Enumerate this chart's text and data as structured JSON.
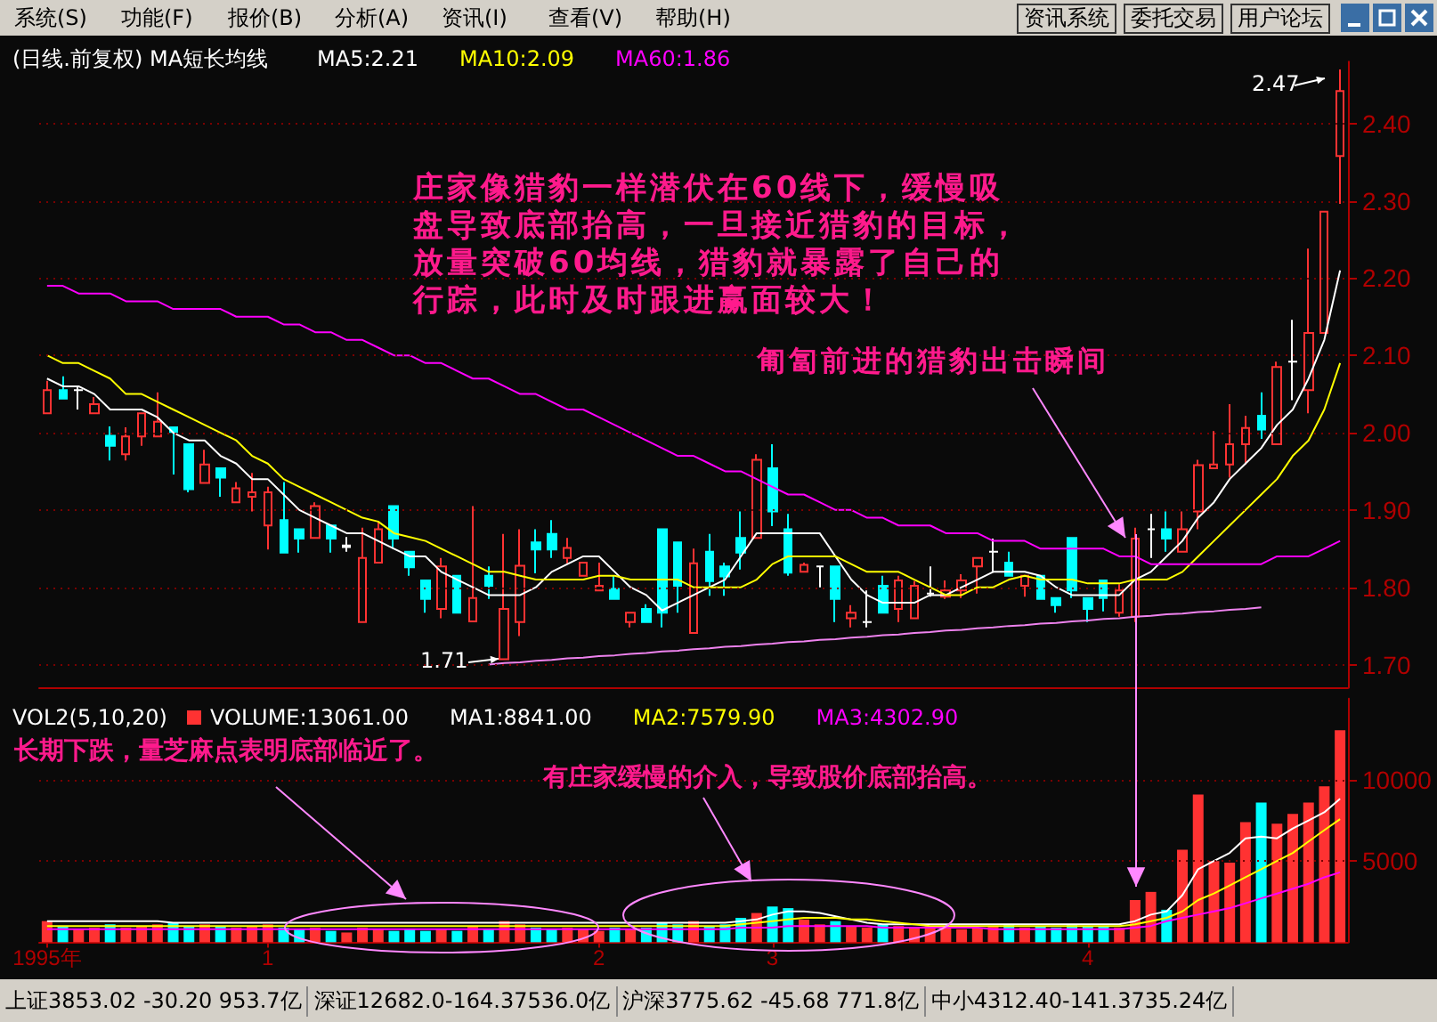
{
  "chart_data": [
    {
      "type": "candlestick",
      "title": "(日线.前复权) MA短长均线",
      "categories": [
        null,
        null,
        null,
        null,
        null,
        null,
        null,
        null,
        null,
        null,
        null,
        null,
        null,
        null,
        null,
        null,
        null,
        null,
        null,
        null,
        null,
        null,
        null,
        null,
        null,
        null,
        null,
        null,
        null,
        null,
        null,
        null,
        null,
        null,
        null,
        null,
        null,
        null,
        null,
        null,
        null,
        null,
        null,
        null,
        null,
        null,
        null,
        null,
        null,
        null,
        null,
        null,
        null,
        null,
        null,
        null,
        null,
        null,
        null,
        null,
        null,
        null,
        null,
        null,
        null,
        null,
        null,
        null,
        null,
        null,
        null,
        null,
        null,
        null,
        null,
        null,
        null,
        null,
        null,
        null,
        null,
        null,
        null
      ],
      "ohlc": [
        [
          2.025,
          2.067,
          2.025,
          2.055
        ],
        [
          2.055,
          2.073,
          2.044,
          2.044
        ],
        [
          2.055,
          2.06,
          2.03,
          2.055
        ],
        [
          2.025,
          2.046,
          2.025,
          2.037
        ],
        [
          1.996,
          2.008,
          1.964,
          1.983
        ],
        [
          1.972,
          2.007,
          1.964,
          1.995
        ],
        [
          1.995,
          2.025,
          1.983,
          2.025
        ],
        [
          1.995,
          2.052,
          1.995,
          2.014
        ],
        [
          2.007,
          2.007,
          1.946,
          2.001
        ],
        [
          1.985,
          1.985,
          1.923,
          1.927
        ],
        [
          1.935,
          1.978,
          1.935,
          1.959
        ],
        [
          1.954,
          1.954,
          1.917,
          1.942
        ],
        [
          1.91,
          1.936,
          1.91,
          1.928
        ],
        [
          1.917,
          1.948,
          1.898,
          1.923
        ],
        [
          1.88,
          1.93,
          1.849,
          1.923
        ],
        [
          1.887,
          1.936,
          1.845,
          1.845
        ],
        [
          1.875,
          1.875,
          1.845,
          1.863
        ],
        [
          1.864,
          1.91,
          1.864,
          1.905
        ],
        [
          1.88,
          1.88,
          1.845,
          1.863
        ],
        [
          1.852,
          1.865,
          1.846,
          1.854
        ],
        [
          1.755,
          1.877,
          1.755,
          1.838
        ],
        [
          1.832,
          1.886,
          1.832,
          1.875
        ],
        [
          1.905,
          1.905,
          1.85,
          1.863
        ],
        [
          1.846,
          1.846,
          1.815,
          1.826
        ],
        [
          1.809,
          1.809,
          1.767,
          1.785
        ],
        [
          1.772,
          1.838,
          1.76,
          1.827
        ],
        [
          1.815,
          1.815,
          1.767,
          1.767
        ],
        [
          1.756,
          1.905,
          1.756,
          1.786
        ],
        [
          1.815,
          1.827,
          1.785,
          1.802
        ],
        [
          1.707,
          1.869,
          1.707,
          1.772
        ],
        [
          1.755,
          1.875,
          1.737,
          1.828
        ],
        [
          1.858,
          1.875,
          1.818,
          1.849
        ],
        [
          1.869,
          1.887,
          1.838,
          1.849
        ],
        [
          1.838,
          1.864,
          1.831,
          1.851
        ],
        [
          1.815,
          1.832,
          1.815,
          1.832
        ],
        [
          1.796,
          1.832,
          1.796,
          1.802
        ],
        [
          1.798,
          1.815,
          1.785,
          1.785
        ],
        [
          1.755,
          1.767,
          1.748,
          1.767
        ],
        [
          1.772,
          1.778,
          1.755,
          1.755
        ],
        [
          1.875,
          1.875,
          1.748,
          1.767
        ],
        [
          1.858,
          1.858,
          1.767,
          1.802
        ],
        [
          1.741,
          1.85,
          1.741,
          1.831
        ],
        [
          1.846,
          1.869,
          1.789,
          1.808
        ],
        [
          1.827,
          1.832,
          1.789,
          1.814
        ],
        [
          1.864,
          1.898,
          1.823,
          1.845
        ],
        [
          1.864,
          1.972,
          1.864,
          1.965
        ],
        [
          1.954,
          1.985,
          1.879,
          1.898
        ],
        [
          1.875,
          1.895,
          1.815,
          1.819
        ],
        [
          1.82,
          1.832,
          1.82,
          1.829
        ],
        [
          1.827,
          1.827,
          1.8,
          1.827
        ],
        [
          1.827,
          1.827,
          1.755,
          1.785
        ],
        [
          1.76,
          1.777,
          1.748,
          1.767
        ],
        [
          1.755,
          1.796,
          1.748,
          1.755
        ],
        [
          1.802,
          1.815,
          1.767,
          1.767
        ],
        [
          1.772,
          1.815,
          1.755,
          1.809
        ],
        [
          1.76,
          1.808,
          1.76,
          1.802
        ],
        [
          1.792,
          1.827,
          1.788,
          1.792
        ],
        [
          1.788,
          1.809,
          1.785,
          1.796
        ],
        [
          1.796,
          1.817,
          1.786,
          1.809
        ],
        [
          1.827,
          1.838,
          1.792,
          1.838
        ],
        [
          1.846,
          1.863,
          1.819,
          1.846
        ],
        [
          1.832,
          1.846,
          1.815,
          1.815
        ],
        [
          1.802,
          1.815,
          1.788,
          1.815
        ],
        [
          1.815,
          1.815,
          1.785,
          1.785
        ],
        [
          1.786,
          1.786,
          1.767,
          1.777
        ],
        [
          1.864,
          1.864,
          1.786,
          1.796
        ],
        [
          1.786,
          1.786,
          1.755,
          1.772
        ],
        [
          1.809,
          1.809,
          1.769,
          1.786
        ],
        [
          1.767,
          1.804,
          1.762,
          1.796
        ],
        [
          1.762,
          1.877,
          1.755,
          1.863
        ],
        [
          1.875,
          1.895,
          1.838,
          1.875
        ],
        [
          1.875,
          1.898,
          1.846,
          1.863
        ],
        [
          1.846,
          1.898,
          1.846,
          1.875
        ],
        [
          1.898,
          1.965,
          1.875,
          1.958
        ],
        [
          1.954,
          2.002,
          1.954,
          1.959
        ],
        [
          1.959,
          2.037,
          1.942,
          1.985
        ],
        [
          1.985,
          2.022,
          1.959,
          2.006
        ],
        [
          2.022,
          2.052,
          1.992,
          2.004
        ],
        [
          1.985,
          2.092,
          1.985,
          2.085
        ],
        [
          2.092,
          2.146,
          2.042,
          2.092
        ],
        [
          2.055,
          2.238,
          2.025,
          2.129
        ],
        [
          2.129,
          2.286,
          2.129,
          2.286
        ],
        [
          2.358,
          2.47,
          2.296,
          2.442
        ]
      ],
      "colors": [
        "#ff3232",
        "#00ffff",
        "#ffffff",
        "#ff3232",
        "#00ffff",
        "#ff3232",
        "#ff3232",
        "#ff3232",
        "#00ffff",
        "#00ffff",
        "#ff3232",
        "#00ffff",
        "#ff3232",
        "#ff3232",
        "#ff3232",
        "#00ffff",
        "#00ffff",
        "#ff3232",
        "#00ffff",
        "#ffffff",
        "#ff3232",
        "#ff3232",
        "#00ffff",
        "#00ffff",
        "#00ffff",
        "#ff3232",
        "#00ffff",
        "#ff3232",
        "#00ffff",
        "#ff3232",
        "#ff3232",
        "#00ffff",
        "#00ffff",
        "#ff3232",
        "#ff3232",
        "#ff3232",
        "#00ffff",
        "#ff3232",
        "#00ffff",
        "#00ffff",
        "#00ffff",
        "#ff3232",
        "#00ffff",
        "#00ffff",
        "#00ffff",
        "#ff3232",
        "#00ffff",
        "#00ffff",
        "#ff3232",
        "#ffffff",
        "#00ffff",
        "#ff3232",
        "#ffffff",
        "#00ffff",
        "#ff3232",
        "#ff3232",
        "#ffffff",
        "#ff3232",
        "#ff3232",
        "#ff3232",
        "#ffffff",
        "#00ffff",
        "#ff3232",
        "#00ffff",
        "#00ffff",
        "#00ffff",
        "#00ffff",
        "#00ffff",
        "#ff3232",
        "#ff3232",
        "#ffffff",
        "#00ffff",
        "#ff3232",
        "#ff3232",
        "#ff3232",
        "#ff3232",
        "#ff3232",
        "#00ffff",
        "#ff3232",
        "#ffffff",
        "#ff3232",
        "#ff3232",
        "#ff3232"
      ],
      "series": [
        {
          "type": "line",
          "name": "MA5:2.21",
          "color": "#ffffff",
          "values": [
            2.07,
            2.06,
            2.06,
            2.05,
            2.03,
            2.03,
            2.03,
            2.02,
            2.0,
            1.99,
            1.99,
            1.97,
            1.96,
            1.94,
            1.94,
            1.92,
            1.9,
            1.89,
            1.88,
            1.87,
            1.87,
            1.86,
            1.85,
            1.84,
            1.84,
            1.82,
            1.81,
            1.8,
            1.79,
            1.79,
            1.79,
            1.8,
            1.82,
            1.83,
            1.84,
            1.84,
            1.82,
            1.8,
            1.79,
            1.77,
            1.78,
            1.79,
            1.8,
            1.81,
            1.84,
            1.87,
            1.87,
            1.87,
            1.87,
            1.87,
            1.84,
            1.81,
            1.79,
            1.78,
            1.78,
            1.78,
            1.79,
            1.79,
            1.8,
            1.81,
            1.82,
            1.82,
            1.82,
            1.815,
            1.8,
            1.79,
            1.79,
            1.79,
            1.79,
            1.81,
            1.82,
            1.84,
            1.86,
            1.89,
            1.91,
            1.94,
            1.96,
            1.98,
            2.01,
            2.03,
            2.07,
            2.12,
            2.21
          ]
        },
        {
          "type": "line",
          "name": "MA10:2.09",
          "color": "#ffff00",
          "values": [
            2.1,
            2.09,
            2.09,
            2.08,
            2.07,
            2.05,
            2.05,
            2.04,
            2.03,
            2.02,
            2.01,
            2.0,
            1.99,
            1.97,
            1.96,
            1.94,
            1.93,
            1.92,
            1.91,
            1.9,
            1.89,
            1.885,
            1.87,
            1.865,
            1.86,
            1.85,
            1.84,
            1.83,
            1.82,
            1.82,
            1.815,
            1.81,
            1.81,
            1.81,
            1.81,
            1.815,
            1.815,
            1.81,
            1.81,
            1.81,
            1.81,
            1.8,
            1.8,
            1.8,
            1.8,
            1.81,
            1.83,
            1.84,
            1.84,
            1.84,
            1.84,
            1.83,
            1.82,
            1.82,
            1.82,
            1.81,
            1.8,
            1.79,
            1.79,
            1.8,
            1.8,
            1.81,
            1.815,
            1.81,
            1.81,
            1.81,
            1.805,
            1.805,
            1.805,
            1.81,
            1.81,
            1.81,
            1.82,
            1.84,
            1.86,
            1.88,
            1.9,
            1.92,
            1.94,
            1.97,
            1.99,
            2.03,
            2.09
          ]
        },
        {
          "type": "line",
          "name": "MA60:1.86",
          "color": "#ff00ff",
          "values": [
            2.19,
            2.19,
            2.18,
            2.18,
            2.18,
            2.17,
            2.17,
            2.17,
            2.16,
            2.16,
            2.16,
            2.16,
            2.15,
            2.15,
            2.15,
            2.14,
            2.14,
            2.13,
            2.13,
            2.12,
            2.12,
            2.11,
            2.1,
            2.1,
            2.09,
            2.09,
            2.08,
            2.07,
            2.07,
            2.06,
            2.05,
            2.05,
            2.04,
            2.03,
            2.03,
            2.02,
            2.01,
            2.0,
            1.99,
            1.98,
            1.97,
            1.97,
            1.96,
            1.95,
            1.95,
            1.94,
            1.93,
            1.92,
            1.92,
            1.91,
            1.9,
            1.9,
            1.89,
            1.89,
            1.88,
            1.88,
            1.88,
            1.87,
            1.87,
            1.87,
            1.86,
            1.86,
            1.86,
            1.85,
            1.85,
            1.85,
            1.85,
            1.85,
            1.84,
            1.84,
            1.83,
            1.83,
            1.83,
            1.83,
            1.83,
            1.83,
            1.83,
            1.83,
            1.84,
            1.84,
            1.84,
            1.85,
            1.86
          ]
        },
        {
          "type": "line",
          "color": "#ee82ee",
          "values": [
            null,
            null,
            null,
            null,
            null,
            null,
            null,
            null,
            null,
            null,
            null,
            null,
            null,
            null,
            null,
            null,
            null,
            null,
            null,
            null,
            null,
            null,
            null,
            null,
            null,
            null,
            null,
            null,
            1.7,
            1.702,
            1.703,
            1.705,
            1.706,
            1.708,
            1.709,
            1.711,
            1.712,
            1.714,
            1.715,
            1.717,
            1.718,
            1.72,
            1.721,
            1.723,
            1.724,
            1.726,
            1.727,
            1.729,
            1.73,
            1.732,
            1.733,
            1.735,
            1.736,
            1.738,
            1.739,
            1.741,
            1.742,
            1.744,
            1.745,
            1.747,
            1.748,
            1.75,
            1.751,
            1.753,
            1.754,
            1.756,
            1.757,
            1.759,
            1.76,
            1.762,
            1.763,
            1.765,
            1.766,
            1.768,
            1.769,
            1.771,
            1.772,
            1.774,
            null,
            null,
            null,
            null,
            null
          ]
        }
      ],
      "ylim": [
        1.67,
        2.48
      ],
      "yticks": [
        {
          "value": 1.7,
          "label": "1.70"
        },
        {
          "value": 1.8,
          "label": "1.80"
        },
        {
          "value": 1.9,
          "label": "1.90"
        },
        {
          "value": 2.0,
          "label": "2.00"
        },
        {
          "value": 2.1,
          "label": "2.10"
        },
        {
          "value": 2.2,
          "label": "2.20"
        },
        {
          "value": 2.3,
          "label": "2.30"
        },
        {
          "value": 2.4,
          "label": "2.40"
        }
      ],
      "grid": "y",
      "legend": "top left",
      "tick_labels": "y",
      "annotations": [
        "庄家像猎豹一样潜伏在60线下，缓慢吸盘导致底部抬高，一旦接近猎豹的目标，放量突破60均线，猎豹就暴露了自己的行踪，此时及时跟进赢面较大！",
        "匍匐前进的猎豹出击瞬间",
        "1.71",
        "2.47",
        "系统(S)",
        "功能(F)",
        "报价(B)",
        "分析(A)",
        "资讯(I)",
        "查看(V)",
        "帮助(H)",
        "资讯系统",
        "委托交易",
        "用户论坛",
        "上证3853.02 -30.20 953.7亿",
        "深证12682.0-164.37536.0亿",
        "沪深3775.62 -45.68 771.8亿",
        "中小4312.40-141.3735.24亿"
      ]
    },
    {
      "type": "bar",
      "title": "VOL2(5,10,20)",
      "categories": [
        "1995年",
        null,
        null,
        null,
        null,
        null,
        null,
        null,
        null,
        null,
        null,
        null,
        null,
        null,
        "1",
        null,
        null,
        null,
        null,
        null,
        null,
        null,
        null,
        null,
        null,
        null,
        null,
        null,
        null,
        null,
        null,
        null,
        null,
        null,
        null,
        "2",
        null,
        null,
        null,
        null,
        null,
        null,
        null,
        null,
        null,
        null,
        "3",
        null,
        null,
        null,
        null,
        null,
        null,
        null,
        null,
        null,
        null,
        null,
        null,
        null,
        null,
        null,
        null,
        null,
        null,
        null,
        "4",
        null,
        null,
        null,
        null,
        null,
        null,
        null,
        null,
        null,
        null,
        null,
        null,
        null,
        null,
        null,
        null
      ],
      "series": [
        {
          "type": "bar",
          "name": "VOLUME:13061.00",
          "colors": [
            "#ff3232",
            "#00ffff",
            "#ff3232",
            "#ff3232",
            "#00ffff",
            "#ff3232",
            "#ff3232",
            "#ff3232",
            "#00ffff",
            "#00ffff",
            "#ff3232",
            "#00ffff",
            "#ff3232",
            "#ff3232",
            "#ff3232",
            "#00ffff",
            "#00ffff",
            "#ff3232",
            "#00ffff",
            "#ff3232",
            "#ff3232",
            "#ff3232",
            "#00ffff",
            "#00ffff",
            "#00ffff",
            "#ff3232",
            "#00ffff",
            "#ff3232",
            "#00ffff",
            "#ff3232",
            "#ff3232",
            "#00ffff",
            "#00ffff",
            "#ff3232",
            "#ff3232",
            "#ff3232",
            "#00ffff",
            "#ff3232",
            "#00ffff",
            "#00ffff",
            "#00ffff",
            "#ff3232",
            "#00ffff",
            "#00ffff",
            "#00ffff",
            "#ff3232",
            "#00ffff",
            "#00ffff",
            "#ff3232",
            "#ff3232",
            "#00ffff",
            "#ff3232",
            "#ff3232",
            "#00ffff",
            "#ff3232",
            "#ff3232",
            "#ff3232",
            "#ff3232",
            "#ff3232",
            "#ff3232",
            "#ff3232",
            "#00ffff",
            "#ff3232",
            "#00ffff",
            "#00ffff",
            "#00ffff",
            "#00ffff",
            "#00ffff",
            "#ff3232",
            "#ff3232",
            "#ff3232",
            "#00ffff",
            "#ff3232",
            "#ff3232",
            "#ff3232",
            "#ff3232",
            "#ff3232",
            "#00ffff",
            "#ff3232",
            "#ff3232",
            "#ff3232",
            "#ff3232",
            "#ff3232"
          ],
          "values": [
            1300,
            1000,
            800,
            900,
            1100,
            900,
            1000,
            1100,
            1200,
            1000,
            1100,
            1000,
            900,
            1000,
            1100,
            900,
            800,
            900,
            700,
            600,
            900,
            800,
            700,
            800,
            700,
            800,
            700,
            1000,
            800,
            1300,
            1100,
            900,
            800,
            900,
            800,
            700,
            900,
            800,
            900,
            1200,
            1100,
            1300,
            1000,
            1100,
            1500,
            1800,
            2200,
            2100,
            1400,
            1100,
            1300,
            1000,
            900,
            1100,
            1000,
            900,
            1000,
            900,
            800,
            900,
            1000,
            1100,
            900,
            1000,
            900,
            1100,
            1000,
            1000,
            900,
            2600,
            3100,
            2000,
            5700,
            9100,
            5000,
            4900,
            7400,
            8600,
            7300,
            7900,
            8600,
            9600,
            13061
          ]
        },
        {
          "type": "line",
          "name": "MA1:8841.00",
          "color": "#ffffff",
          "values": [
            1300,
            1300,
            1300,
            1300,
            1300,
            1300,
            1300,
            1300,
            1200,
            1200,
            1200,
            1200,
            1200,
            1200,
            1200,
            1200,
            1200,
            1200,
            1200,
            1200,
            1200,
            1200,
            1200,
            1200,
            1200,
            1200,
            1200,
            1200,
            1200,
            1200,
            1200,
            1200,
            1200,
            1200,
            1200,
            1200,
            1200,
            1200,
            1200,
            1200,
            1200,
            1200,
            1200,
            1200,
            1300,
            1400,
            1700,
            1900,
            1900,
            1800,
            1600,
            1400,
            1200,
            1100,
            1100,
            1100,
            1100,
            1100,
            1100,
            1100,
            1100,
            1100,
            1100,
            1100,
            1100,
            1100,
            1100,
            1100,
            1100,
            1300,
            1700,
            1900,
            2900,
            4500,
            5000,
            5500,
            6400,
            6500,
            6400,
            7000,
            7500,
            8000,
            8841
          ]
        },
        {
          "type": "line",
          "name": "MA2:7579.90",
          "color": "#ffff00",
          "values": [
            1000,
            1000,
            1000,
            1000,
            1000,
            1000,
            1000,
            1000,
            1000,
            1000,
            1000,
            1000,
            1000,
            1000,
            1000,
            1000,
            1000,
            1000,
            1000,
            1000,
            1000,
            1000,
            1000,
            1000,
            1000,
            1000,
            1000,
            1000,
            1000,
            1000,
            1000,
            1000,
            1000,
            1000,
            1000,
            1000,
            1000,
            1000,
            1000,
            1000,
            1000,
            1000,
            1000,
            1000,
            1100,
            1200,
            1300,
            1400,
            1500,
            1500,
            1500,
            1400,
            1400,
            1300,
            1200,
            1100,
            1000,
            1000,
            1000,
            1000,
            1000,
            1000,
            1000,
            1000,
            1000,
            1000,
            1000,
            1000,
            1000,
            1100,
            1300,
            1500,
            1900,
            2600,
            3000,
            3500,
            4000,
            4500,
            5000,
            5500,
            6200,
            6900,
            7579.9
          ]
        },
        {
          "type": "line",
          "name": "MA3:4302.90",
          "color": "#ff00ff",
          "values": [
            800,
            800,
            800,
            800,
            800,
            800,
            800,
            800,
            800,
            800,
            800,
            800,
            800,
            800,
            800,
            800,
            800,
            800,
            800,
            800,
            800,
            800,
            800,
            800,
            800,
            800,
            800,
            800,
            800,
            800,
            800,
            800,
            800,
            800,
            800,
            800,
            800,
            800,
            800,
            800,
            800,
            800,
            800,
            800,
            900,
            900,
            900,
            1000,
            1000,
            1000,
            1000,
            1000,
            1000,
            900,
            900,
            900,
            900,
            900,
            900,
            900,
            800,
            800,
            800,
            800,
            800,
            800,
            800,
            800,
            800,
            900,
            1000,
            1300,
            1500,
            1700,
            1900,
            2100,
            2400,
            2700,
            3000,
            3300,
            3600,
            4000,
            4302.9
          ]
        }
      ],
      "ylim": [
        0,
        15000
      ],
      "yticks": [
        5000,
        10000
      ],
      "grid": "y",
      "legend": "top left",
      "annotations": [
        "长期下跌，量芝麻点表明底部临近了。",
        "有庄家缓慢的介入，导致股价底部抬高。"
      ]
    }
  ]
}
